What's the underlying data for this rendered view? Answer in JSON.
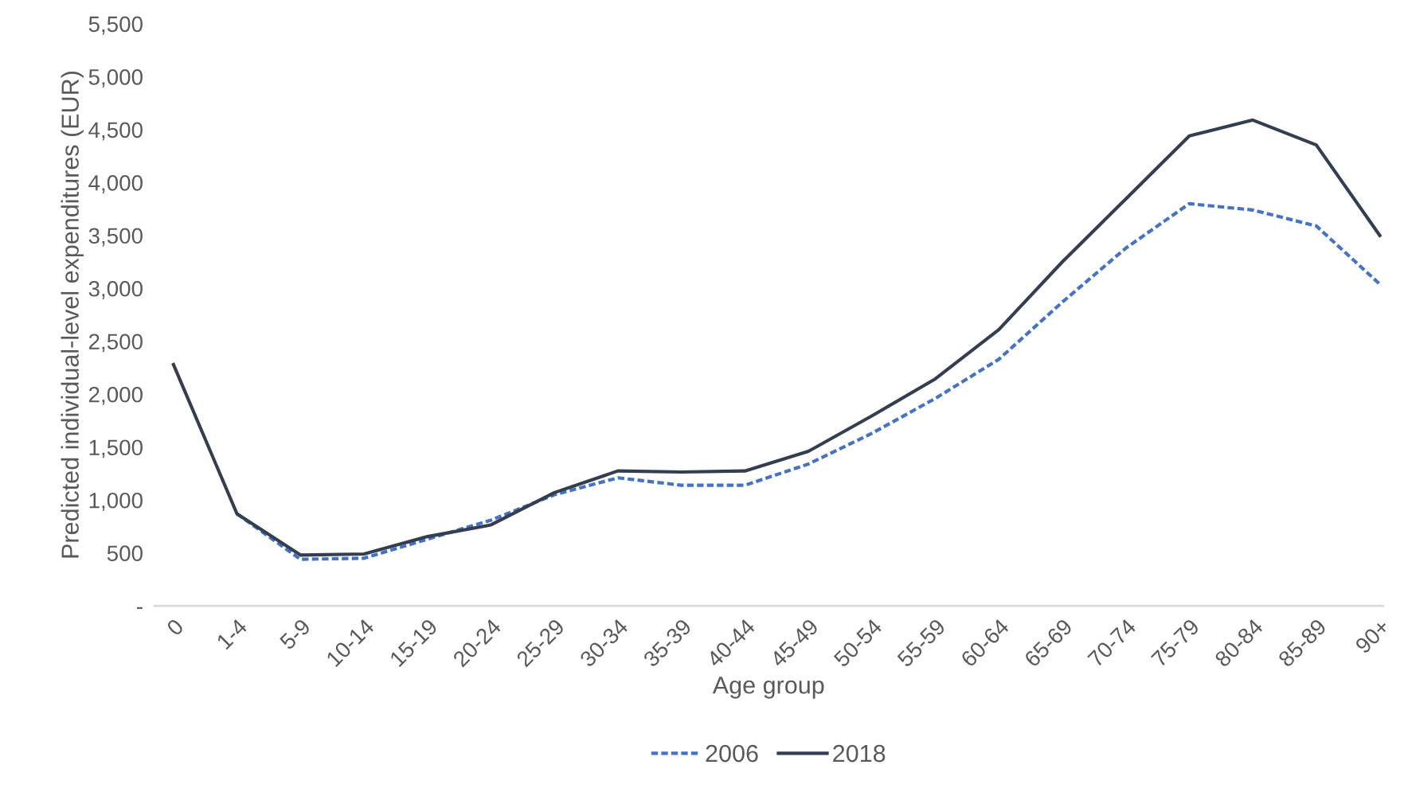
{
  "chart_data": {
    "type": "line",
    "xlabel": "Age group",
    "ylabel": "Predicted individual-level expenditures (EUR)",
    "categories": [
      "0",
      "1-4",
      "5-9",
      "10-14",
      "15-19",
      "20-24",
      "25-29",
      "30-34",
      "35-39",
      "40-44",
      "45-49",
      "50-54",
      "55-59",
      "60-64",
      "65-69",
      "70-74",
      "75-79",
      "80-84",
      "85-89",
      "90+"
    ],
    "series": [
      {
        "name": "2006",
        "color": "#4472c4",
        "line_style": "dashed",
        "values": [
          null,
          870,
          440,
          450,
          630,
          810,
          1050,
          1210,
          1140,
          1140,
          1340,
          1630,
          1960,
          2330,
          2870,
          3380,
          3800,
          3740,
          3590,
          3040
        ]
      },
      {
        "name": "2018",
        "color": "#333f50",
        "line_style": "solid",
        "values": [
          2280,
          870,
          480,
          490,
          655,
          765,
          1070,
          1275,
          1265,
          1275,
          1460,
          1795,
          2145,
          2610,
          3250,
          3845,
          4440,
          4590,
          4355,
          3500
        ]
      }
    ],
    "ylim": [
      0,
      5500
    ],
    "yticks": [
      {
        "value": 0,
        "label": "-"
      },
      {
        "value": 500,
        "label": "500"
      },
      {
        "value": 1000,
        "label": "1,000"
      },
      {
        "value": 1500,
        "label": "1,500"
      },
      {
        "value": 2000,
        "label": "2,000"
      },
      {
        "value": 2500,
        "label": "2,500"
      },
      {
        "value": 3000,
        "label": "3,000"
      },
      {
        "value": 3500,
        "label": "3,500"
      },
      {
        "value": 4000,
        "label": "4,000"
      },
      {
        "value": 4500,
        "label": "4,500"
      },
      {
        "value": 5000,
        "label": "5,000"
      },
      {
        "value": 5500,
        "label": "5,500"
      }
    ],
    "grid": false,
    "legend": "bottom",
    "marker": "none"
  }
}
